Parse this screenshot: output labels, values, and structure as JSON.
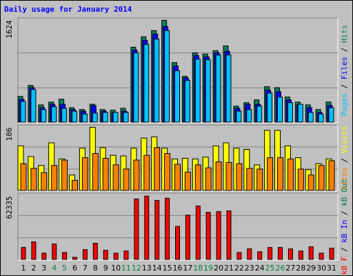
{
  "chart_data": [
    {
      "type": "bar",
      "title": "Daily usage for January 2014",
      "ylim": [
        0,
        1650
      ],
      "yticks": [
        1624
      ],
      "legend_separator": " / ",
      "series": [
        {
          "name": "Hits",
          "color": "#008060",
          "values": [
            410,
            585,
            275,
            320,
            365,
            230,
            200,
            285,
            200,
            190,
            220,
            1195,
            1360,
            1460,
            1624,
            950,
            730,
            1105,
            1085,
            1140,
            1215,
            255,
            310,
            355,
            565,
            550,
            400,
            320,
            275,
            200,
            320
          ]
        },
        {
          "name": "Files",
          "color": "#0000ff",
          "values": [
            365,
            550,
            230,
            285,
            285,
            200,
            175,
            265,
            175,
            155,
            175,
            1150,
            1305,
            1405,
            1525,
            895,
            705,
            1060,
            1040,
            1105,
            1130,
            220,
            285,
            285,
            510,
            485,
            355,
            275,
            230,
            155,
            265
          ]
        },
        {
          "name": "Pages",
          "color": "#00c0ff",
          "values": [
            330,
            520,
            200,
            245,
            220,
            175,
            130,
            145,
            155,
            155,
            155,
            1105,
            1240,
            1325,
            1460,
            820,
            665,
            1005,
            995,
            1070,
            1070,
            175,
            200,
            255,
            465,
            400,
            310,
            285,
            155,
            130,
            230
          ]
        }
      ]
    },
    {
      "type": "bar",
      "ylim": [
        0,
        109
      ],
      "yticks": [
        106
      ],
      "legend_separator": " / ",
      "series": [
        {
          "name": "Visits",
          "color": "#ffff00",
          "values": [
            75,
            57,
            42,
            80,
            53,
            26,
            71,
            106,
            72,
            59,
            58,
            71,
            88,
            90,
            71,
            53,
            54,
            53,
            56,
            75,
            80,
            71,
            69,
            43,
            101,
            101,
            75,
            55,
            35,
            45,
            53
          ]
        },
        {
          "name": "Sites",
          "color": "#ff8000",
          "values": [
            45,
            37,
            30,
            42,
            51,
            17,
            55,
            62,
            54,
            43,
            36,
            51,
            59,
            72,
            62,
            44,
            31,
            43,
            38,
            48,
            47,
            45,
            37,
            36,
            55,
            55,
            53,
            36,
            26,
            42,
            50
          ]
        }
      ]
    },
    {
      "type": "bar",
      "ylim": [
        0,
        64500
      ],
      "yticks": [
        62335
      ],
      "legend_separator": " / ",
      "categories": [
        "1",
        "2",
        "3",
        "4",
        "5",
        "6",
        "7",
        "8",
        "9",
        "10",
        "11",
        "12",
        "13",
        "14",
        "15",
        "16",
        "17",
        "18",
        "19",
        "20",
        "21",
        "22",
        "23",
        "24",
        "25",
        "26",
        "27",
        "28",
        "29",
        "30",
        "31"
      ],
      "category_colors": [
        "#000000",
        "#000000",
        "#000000",
        "#008040",
        "#008040",
        "#000000",
        "#000000",
        "#000000",
        "#000000",
        "#000000",
        "#008040",
        "#008040",
        "#000000",
        "#000000",
        "#000000",
        "#000000",
        "#000000",
        "#008040",
        "#008040",
        "#000000",
        "#000000",
        "#000000",
        "#000000",
        "#000000",
        "#008040",
        "#008040",
        "#000000",
        "#000000",
        "#000000",
        "#000000",
        "#000000"
      ],
      "series": [
        {
          "name": "kB F",
          "color": "#ff0000",
          "values": [
            11800,
            17300,
            6200,
            15200,
            6900,
            2100,
            9700,
            15900,
            9000,
            6200,
            8300,
            59500,
            62335,
            58100,
            60200,
            32500,
            43600,
            52600,
            46400,
            47100,
            47800,
            6900,
            10400,
            7600,
            11800,
            11800,
            10400,
            8300,
            12500,
            6200,
            11100
          ]
        }
      ],
      "legend_extra": [
        {
          "name": "kB In",
          "color": "#0000ff"
        },
        {
          "name": "kB Out",
          "color": "#008040"
        }
      ]
    }
  ]
}
